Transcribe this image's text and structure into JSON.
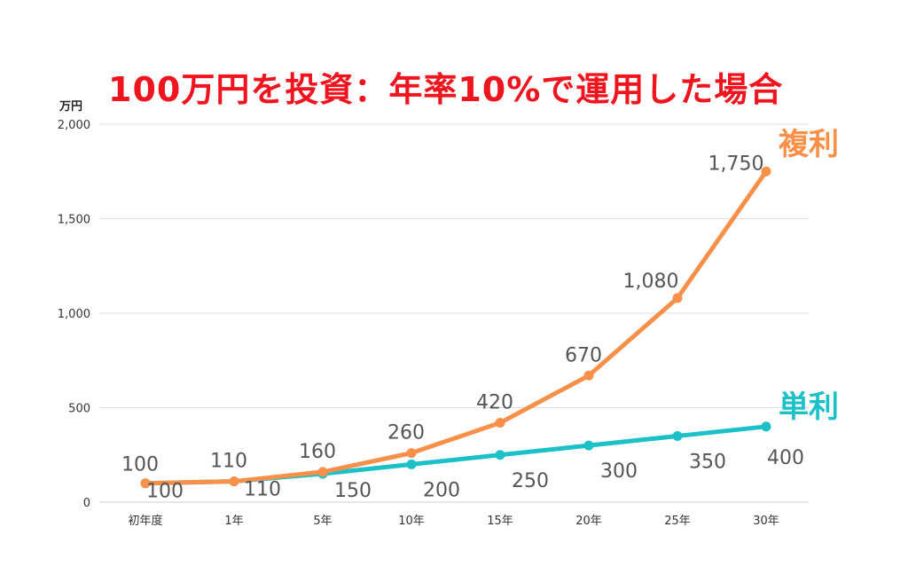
{
  "title": "100万円を投資：年率10%で運用した場合",
  "chart_data": {
    "type": "line",
    "ylabel": "万円",
    "ylim": [
      0,
      2000
    ],
    "yticks": [
      0,
      500,
      1000,
      1500,
      2000
    ],
    "ytick_labels": [
      "0",
      "500",
      "1,000",
      "1,500",
      "2,000"
    ],
    "grid": true,
    "categories": [
      "初年度",
      "1年",
      "5年",
      "10年",
      "15年",
      "20年",
      "25年",
      "30年"
    ],
    "series": [
      {
        "name": "複利",
        "color": "#f8904a",
        "values": [
          100,
          110,
          160,
          260,
          420,
          670,
          1080,
          1750
        ],
        "labels": [
          "100",
          "110",
          "160",
          "260",
          "420",
          "670",
          "1,080",
          "1,750"
        ],
        "label_position": "above"
      },
      {
        "name": "単利",
        "color": "#1cc1c8",
        "values": [
          100,
          110,
          150,
          200,
          250,
          300,
          350,
          400
        ],
        "labels": [
          "100",
          "110",
          "150",
          "200",
          "250",
          "300",
          "350",
          "400"
        ],
        "label_position": "below"
      }
    ]
  }
}
